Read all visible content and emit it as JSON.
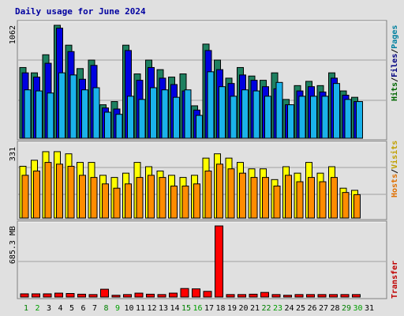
{
  "chart_data": [
    {
      "type": "bar",
      "title": "Daily usage for June 2024",
      "ylim": [
        0,
        1062
      ],
      "ytick": "1062",
      "right_label": {
        "parts": [
          "Hits",
          "Files",
          "Pages"
        ],
        "colors": [
          "#006600",
          "#000080",
          "#0080a0"
        ]
      },
      "categories": [
        "1",
        "2",
        "3",
        "4",
        "5",
        "6",
        "7",
        "8",
        "9",
        "10",
        "11",
        "12",
        "13",
        "14",
        "15",
        "16",
        "17",
        "18",
        "19",
        "20",
        "21",
        "22",
        "23",
        "24",
        "25",
        "26",
        "27",
        "28",
        "29",
        "30",
        "31"
      ],
      "series": [
        {
          "name": "Hits",
          "color": "#1e8060",
          "values": [
            665,
            615,
            785,
            1062,
            875,
            655,
            735,
            315,
            345,
            875,
            605,
            735,
            645,
            575,
            605,
            305,
            885,
            735,
            565,
            665,
            585,
            545,
            615,
            365,
            495,
            535,
            495,
            615,
            445,
            385,
            0
          ]
        },
        {
          "name": "Files",
          "color": "#0000e0",
          "values": [
            615,
            575,
            705,
            1035,
            815,
            555,
            685,
            285,
            275,
            825,
            545,
            665,
            565,
            505,
            445,
            265,
            825,
            645,
            515,
            595,
            545,
            485,
            465,
            315,
            445,
            485,
            435,
            565,
            405,
            345,
            0
          ]
        },
        {
          "name": "Pages",
          "color": "#1ab2ea",
          "values": [
            455,
            445,
            425,
            615,
            595,
            455,
            475,
            245,
            225,
            395,
            365,
            475,
            455,
            385,
            455,
            215,
            625,
            485,
            395,
            455,
            445,
            395,
            525,
            315,
            395,
            395,
            395,
            515,
            365,
            345,
            0
          ]
        }
      ]
    },
    {
      "type": "bar",
      "ylim": [
        0,
        331
      ],
      "ytick": "331",
      "right_label": {
        "parts": [
          "Hosts",
          "Visits"
        ],
        "colors": [
          "#e07000",
          "#c0a000"
        ]
      },
      "series": [
        {
          "name": "Visits",
          "color": "#ffff00",
          "values": [
            241,
            269,
            309,
            309,
            299,
            259,
            259,
            199,
            189,
            209,
            259,
            239,
            219,
            199,
            189,
            199,
            279,
            299,
            279,
            259,
            229,
            229,
            179,
            239,
            209,
            259,
            209,
            239,
            139,
            129,
            0
          ]
        },
        {
          "name": "Hosts",
          "color": "#ff8c00",
          "values": [
            199,
            219,
            259,
            251,
            241,
            199,
            189,
            159,
            139,
            159,
            189,
            199,
            189,
            149,
            149,
            159,
            219,
            251,
            229,
            209,
            189,
            189,
            149,
            199,
            169,
            189,
            169,
            189,
            119,
            109,
            0
          ]
        }
      ]
    },
    {
      "type": "bar",
      "ylim": [
        0,
        1000
      ],
      "ytick": "685.3 MB",
      "right_label": {
        "parts": [
          "Transfer"
        ],
        "colors": [
          "#c00000"
        ]
      },
      "series": [
        {
          "name": "Transfer",
          "color": "#ff0000",
          "values": [
            45,
            45,
            45,
            55,
            50,
            40,
            35,
            110,
            25,
            35,
            55,
            40,
            35,
            55,
            120,
            115,
            80,
            1000,
            35,
            35,
            40,
            65,
            35,
            25,
            35,
            35,
            35,
            35,
            35,
            35,
            0
          ]
        }
      ]
    }
  ],
  "x_axis": {
    "labels": [
      "1",
      "2",
      "3",
      "4",
      "5",
      "6",
      "7",
      "8",
      "9",
      "10",
      "11",
      "12",
      "13",
      "14",
      "15",
      "16",
      "17",
      "18",
      "19",
      "20",
      "21",
      "22",
      "23",
      "24",
      "25",
      "26",
      "27",
      "28",
      "29",
      "30",
      "31"
    ],
    "weekend_days": [
      "1",
      "8",
      "15",
      "22",
      "29"
    ],
    "weekend_color": "#008000",
    "weekday_days": [
      "2",
      "9",
      "16",
      "23",
      "30"
    ],
    "weekday_color": "#00a000",
    "default_color": "#000000"
  }
}
